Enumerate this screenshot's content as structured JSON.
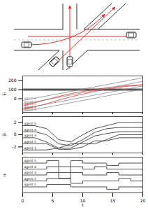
{
  "chart_data": [
    {
      "type": "line",
      "y_label": "ỹᵢ",
      "tick_labels": "y",
      "x": [
        0,
        2,
        4,
        6,
        8,
        10,
        12,
        14,
        16,
        18,
        20
      ],
      "xlim": [
        0,
        20
      ],
      "xticks": [
        0,
        5,
        10,
        15,
        20
      ],
      "ylim": [
        -150,
        250
      ],
      "yticks": [
        0,
        100,
        200
      ],
      "hlines": [
        95,
        105
      ],
      "series": [
        {
          "name": "agent 1",
          "color": "#e03030",
          "values": [
            -120,
            -90,
            -55,
            -15,
            20,
            50,
            80,
            105,
            125,
            140,
            150
          ]
        },
        {
          "name": "agent 2",
          "color": "#e03030",
          "values": [
            -80,
            -45,
            -10,
            25,
            55,
            80,
            100,
            120,
            135,
            145,
            155
          ]
        },
        {
          "name": "agent 3",
          "color": "#888888",
          "values": [
            -140,
            -120,
            -95,
            -70,
            -45,
            -20,
            5,
            30,
            55,
            80,
            105
          ]
        },
        {
          "name": "agent 4",
          "color": "#888888",
          "values": [
            -110,
            -85,
            -60,
            -35,
            -10,
            15,
            40,
            65,
            90,
            115,
            140
          ]
        },
        {
          "name": "agent 5",
          "color": "#888888",
          "values": [
            -60,
            -35,
            -10,
            15,
            40,
            65,
            90,
            115,
            140,
            165,
            190
          ]
        },
        {
          "name": "agent 6",
          "color": "#888888",
          "values": [
            -20,
            5,
            30,
            55,
            80,
            105,
            130,
            155,
            180,
            205,
            230
          ]
        }
      ]
    },
    {
      "type": "line",
      "y_label": "ŷᵢ",
      "tick_labels": "y",
      "x": [
        0,
        2,
        4,
        6,
        8,
        10,
        12,
        14,
        16,
        18,
        20
      ],
      "xlim": [
        0,
        20
      ],
      "xticks": [
        0,
        5,
        10,
        15,
        20
      ],
      "ylim": [
        -3,
        3
      ],
      "yticks": [
        -2,
        0,
        2
      ],
      "series": [
        {
          "name": "agent 5",
          "color": "#222222",
          "values": [
            1.5,
            1.5,
            1.0,
            -0.8,
            -1.2,
            0,
            1.0,
            1.5,
            2.0,
            2.0,
            2.0
          ]
        },
        {
          "name": "agent 4",
          "color": "#222222",
          "values": [
            0.5,
            0.5,
            0,
            -1.5,
            -1.8,
            -0.8,
            0.4,
            1.0,
            1.2,
            1.2,
            1.2
          ]
        },
        {
          "name": "agent 3",
          "color": "#222222",
          "values": [
            -0.5,
            -0.5,
            -1.2,
            -2.2,
            -2.2,
            -1.2,
            -0.2,
            0.2,
            0.5,
            0.5,
            0.5
          ]
        },
        {
          "name": "agent 2",
          "color": "#222222",
          "values": [
            -1.5,
            -1.5,
            -1.5,
            -2.4,
            -2.4,
            -2.0,
            -1.0,
            -1.0,
            -0.5,
            -0.5,
            -0.5
          ]
        },
        {
          "name": "agent 1",
          "color": "#222222",
          "values": [
            -2.5,
            -2.5,
            -2.5,
            -2.2,
            -1.5,
            -1.5,
            -1.5,
            -0.8,
            0,
            0,
            0
          ]
        }
      ]
    },
    {
      "type": "line",
      "y_label": "uᵢ",
      "x_label": "t",
      "tick_labels": "x",
      "line_style": "step",
      "x": [
        0,
        2,
        4,
        6,
        8,
        10,
        12,
        14,
        16,
        18,
        20
      ],
      "xlim": [
        0,
        20
      ],
      "xticks": [
        0,
        5,
        10,
        15,
        20
      ],
      "ylim": [
        -1,
        5
      ],
      "series": [
        {
          "name": "agent 5",
          "color": "#222222",
          "values": [
            4,
            4,
            4.4,
            3.4,
            4.4,
            4,
            4,
            3.6,
            4,
            4,
            4
          ]
        },
        {
          "name": "agent 4",
          "color": "#222222",
          "values": [
            3,
            3,
            3.4,
            2.4,
            3.4,
            3,
            3.4,
            3,
            3,
            3,
            3
          ]
        },
        {
          "name": "agent 3",
          "color": "#222222",
          "values": [
            2,
            2,
            2.4,
            1.4,
            2.4,
            2,
            2,
            2.4,
            2,
            2,
            2
          ]
        },
        {
          "name": "agent 2",
          "color": "#222222",
          "values": [
            1,
            1,
            1.4,
            1.4,
            0.6,
            1,
            1,
            1,
            1.4,
            1,
            1
          ]
        },
        {
          "name": "agent 1",
          "color": "#222222",
          "values": [
            0,
            0,
            0.4,
            0.4,
            0,
            0,
            0,
            -0.4,
            0,
            0,
            0
          ]
        }
      ]
    }
  ]
}
